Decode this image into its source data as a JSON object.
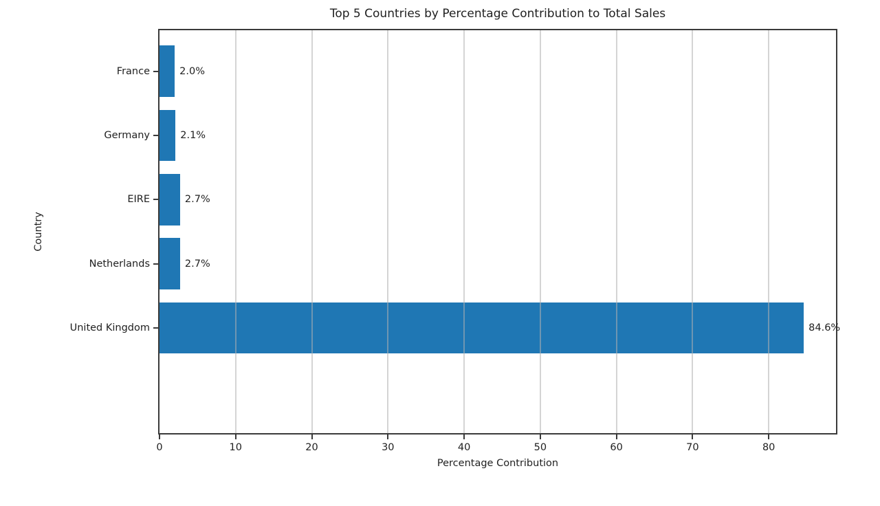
{
  "chart_data": {
    "type": "bar",
    "orientation": "horizontal",
    "title": "Top 5 Countries by Percentage Contribution to Total Sales",
    "xlabel": "Percentage Contribution",
    "ylabel": "Country",
    "categories": [
      "France",
      "Germany",
      "EIRE",
      "Netherlands",
      "United Kingdom"
    ],
    "values": [
      2.0,
      2.1,
      2.7,
      2.7,
      84.6
    ],
    "value_labels": [
      "2.0%",
      "2.1%",
      "2.7%",
      "2.7%",
      "84.6%"
    ],
    "x_ticks": [
      0,
      10,
      20,
      30,
      40,
      50,
      60,
      70,
      80
    ],
    "xlim": [
      0,
      88.83
    ],
    "bar_thickness_fraction": 0.8,
    "grid": true,
    "grid_axis": "x",
    "legend_position": "none",
    "colors": {
      "bar": "#1f77b4",
      "grid": "#b0b0b0",
      "spine": "#3a3a3a",
      "text": "#1f1f1f",
      "background": "#ffffff"
    }
  }
}
